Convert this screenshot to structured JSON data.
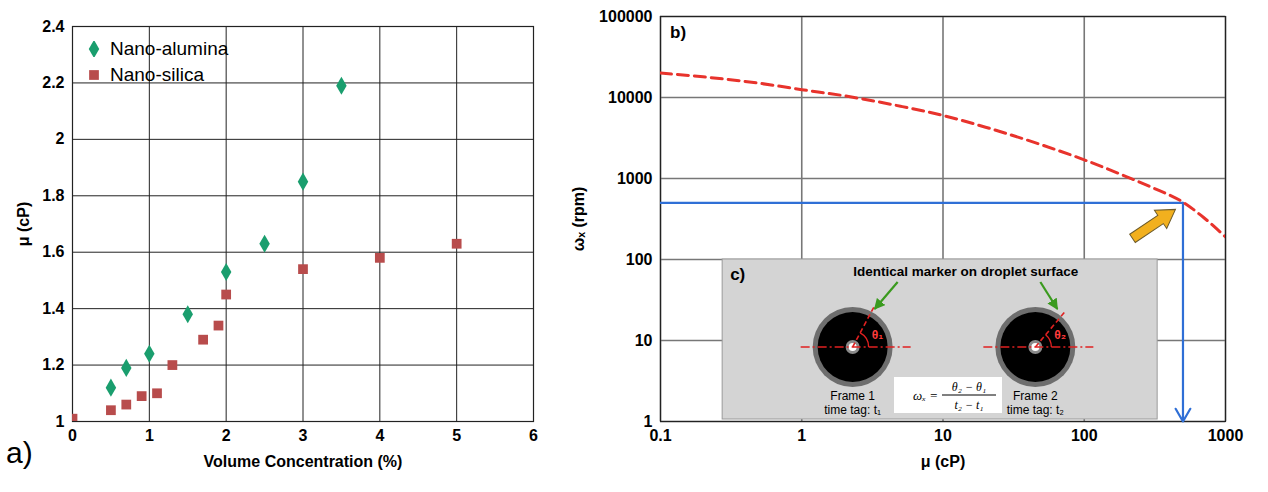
{
  "chart_data": [
    {
      "type": "scatter",
      "panel_label": "a)",
      "x_label": "Volume Concentration (%)",
      "y_label": "μ (cP)",
      "xlim": [
        0,
        6
      ],
      "xticks": [
        0,
        1,
        2,
        3,
        4,
        5,
        6
      ],
      "ylim": [
        1,
        2.4
      ],
      "yticks": [
        1,
        1.2,
        1.4,
        1.6,
        1.8,
        2,
        2.2,
        2.4
      ],
      "grid": true,
      "legend": "top-left",
      "series": [
        {
          "name": "Nano-alumina",
          "color": "#1a9e6e",
          "marker": "diamond",
          "x": [
            0.5,
            0.7,
            1,
            1.5,
            2,
            2.5,
            3,
            3.5
          ],
          "values": [
            1.12,
            1.19,
            1.24,
            1.38,
            1.53,
            1.63,
            1.85,
            2.19
          ]
        },
        {
          "name": "Nano-silica",
          "color": "#b84c4c",
          "marker": "square",
          "x": [
            0,
            0.5,
            0.7,
            0.9,
            1.1,
            1.3,
            1.7,
            1.9,
            2,
            3,
            4,
            5
          ],
          "values": [
            1.01,
            1.04,
            1.06,
            1.09,
            1.1,
            1.2,
            1.29,
            1.34,
            1.45,
            1.54,
            1.58,
            1.63
          ]
        }
      ]
    },
    {
      "type": "line",
      "panel_label": "b)",
      "x_label": "μ (cP)",
      "y_label": "ωₓ (rpm)",
      "log": true,
      "xlim": [
        0.1,
        1000
      ],
      "xticks": [
        0.1,
        1,
        10,
        100,
        1000
      ],
      "ylim": [
        1,
        100000
      ],
      "yticks": [
        1,
        10,
        100,
        1000,
        10000,
        100000
      ],
      "grid": true,
      "series": [
        {
          "color": "#e8332c",
          "line_style": "dashed",
          "x": [
            0.1,
            0.2,
            0.5,
            1,
            2,
            5,
            10,
            20,
            50,
            100,
            200,
            300,
            500,
            700,
            1000
          ],
          "values": [
            20000,
            18000,
            15000,
            12500,
            10500,
            7800,
            6000,
            4300,
            2600,
            1700,
            1050,
            780,
            510,
            330,
            190
          ]
        }
      ],
      "reading": {
        "x": 500,
        "y": 500,
        "color": "#2f6fd6"
      },
      "inset": {
        "panel_label": "c)",
        "heading": "Identical marker on droplet surface",
        "frames": [
          {
            "name": "Frame 1",
            "time_tag": "time tag: t₁",
            "angle": "θ₁"
          },
          {
            "name": "Frame 2",
            "time_tag": "time tag: t₂",
            "angle": "θ₂"
          }
        ],
        "formula": {
          "lhs": "ωₓ =",
          "numerator": "θ₂ − θ₁",
          "denominator": "t₂ − t₁"
        }
      }
    }
  ]
}
